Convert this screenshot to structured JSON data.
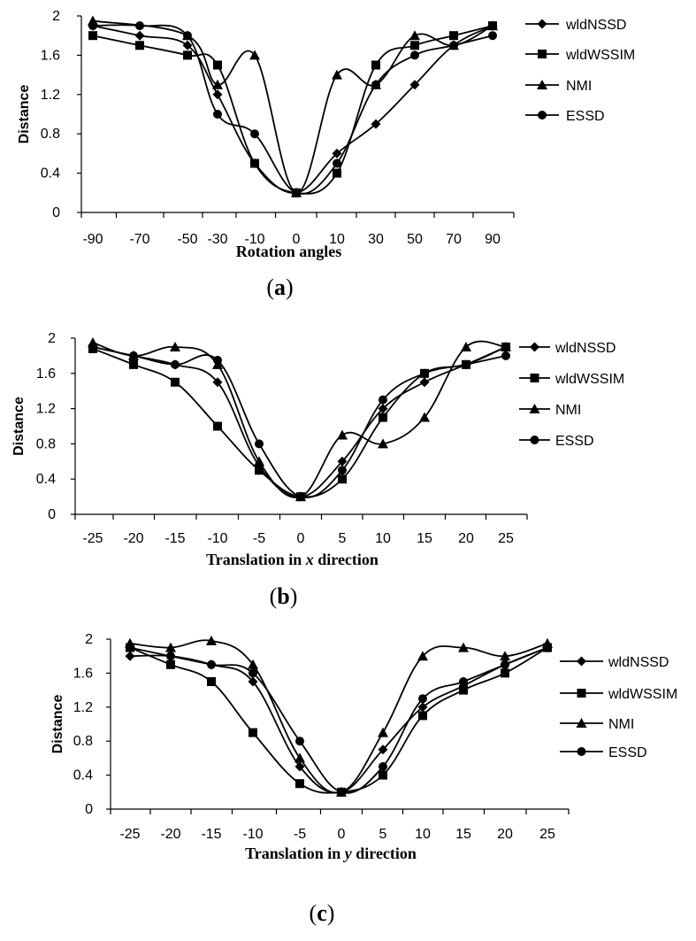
{
  "chart_data": [
    {
      "type": "line",
      "panel_label": "a",
      "ylabel": "Distance",
      "xlabel": "Rotation angles",
      "categories": [
        "-90",
        "-70",
        "-50",
        "-30",
        "-10",
        "0",
        "10",
        "30",
        "50",
        "70",
        "90"
      ],
      "ylim": [
        0,
        2
      ],
      "yticks": [
        "0",
        "0.4",
        "0.8",
        "1.2",
        "1.6",
        "2"
      ],
      "legend_position": "right",
      "series": [
        {
          "name": "wldNSSD",
          "marker": "diamond",
          "points": [
            [
              -90,
              1.9
            ],
            [
              -70,
              1.8
            ],
            [
              -50,
              1.7
            ],
            [
              -30,
              1.2
            ],
            [
              -10,
              0.5
            ],
            [
              0,
              0.2
            ],
            [
              10,
              0.6
            ],
            [
              30,
              0.9
            ],
            [
              50,
              1.3
            ],
            [
              70,
              1.7
            ],
            [
              90,
              1.9
            ]
          ]
        },
        {
          "name": "wldWSSIM",
          "marker": "square",
          "points": [
            [
              -90,
              1.8
            ],
            [
              -70,
              1.7
            ],
            [
              -50,
              1.6
            ],
            [
              -30,
              1.5
            ],
            [
              -10,
              0.5
            ],
            [
              0,
              0.2
            ],
            [
              10,
              0.4
            ],
            [
              30,
              1.5
            ],
            [
              50,
              1.7
            ],
            [
              70,
              1.8
            ],
            [
              90,
              1.9
            ]
          ]
        },
        {
          "name": "NMI",
          "marker": "triangle",
          "points": [
            [
              -90,
              1.95
            ],
            [
              -50,
              1.8
            ],
            [
              -30,
              1.3
            ],
            [
              -10,
              1.6
            ],
            [
              0,
              0.2
            ],
            [
              10,
              1.4
            ],
            [
              30,
              1.3
            ],
            [
              50,
              1.8
            ],
            [
              70,
              1.7
            ],
            [
              90,
              1.9
            ]
          ]
        },
        {
          "name": "ESSD",
          "marker": "circle",
          "points": [
            [
              -90,
              1.9
            ],
            [
              -70,
              1.9
            ],
            [
              -50,
              1.8
            ],
            [
              -30,
              1.0
            ],
            [
              -10,
              0.8
            ],
            [
              0,
              0.2
            ],
            [
              10,
              0.5
            ],
            [
              30,
              1.3
            ],
            [
              50,
              1.6
            ],
            [
              70,
              1.7
            ],
            [
              90,
              1.8
            ]
          ]
        }
      ]
    },
    {
      "type": "line",
      "panel_label": "b",
      "ylabel": "Distance",
      "xlabel_prefix": "Translation in ",
      "xlabel_var": "x",
      "xlabel_suffix": " direction",
      "categories": [
        "-25",
        "-20",
        "-15",
        "-10",
        "-5",
        "0",
        "5",
        "10",
        "15",
        "20",
        "25"
      ],
      "ylim": [
        0,
        2
      ],
      "yticks": [
        "0",
        "0.4",
        "0.8",
        "1.2",
        "1.6",
        "2"
      ],
      "legend_position": "right",
      "series": [
        {
          "name": "wldNSSD",
          "marker": "diamond",
          "points": [
            [
              -25,
              1.9
            ],
            [
              -20,
              1.8
            ],
            [
              -15,
              1.7
            ],
            [
              -10,
              1.5
            ],
            [
              -5,
              0.55
            ],
            [
              0,
              0.2
            ],
            [
              5,
              0.6
            ],
            [
              10,
              1.2
            ],
            [
              15,
              1.5
            ],
            [
              20,
              1.7
            ],
            [
              25,
              1.9
            ]
          ]
        },
        {
          "name": "wldWSSIM",
          "marker": "square",
          "points": [
            [
              -25,
              1.88
            ],
            [
              -20,
              1.7
            ],
            [
              -15,
              1.5
            ],
            [
              -10,
              1.0
            ],
            [
              -5,
              0.5
            ],
            [
              0,
              0.2
            ],
            [
              5,
              0.4
            ],
            [
              10,
              1.1
            ],
            [
              15,
              1.6
            ],
            [
              20,
              1.7
            ],
            [
              25,
              1.9
            ]
          ]
        },
        {
          "name": "NMI",
          "marker": "triangle",
          "points": [
            [
              -25,
              1.95
            ],
            [
              -20,
              1.8
            ],
            [
              -15,
              1.9
            ],
            [
              -10,
              1.7
            ],
            [
              -5,
              0.6
            ],
            [
              0,
              0.2
            ],
            [
              5,
              0.9
            ],
            [
              10,
              0.8
            ],
            [
              15,
              1.1
            ],
            [
              20,
              1.9
            ],
            [
              25,
              1.9
            ]
          ]
        },
        {
          "name": "ESSD",
          "marker": "circle",
          "points": [
            [
              -25,
              1.9
            ],
            [
              -20,
              1.8
            ],
            [
              -15,
              1.7
            ],
            [
              -10,
              1.75
            ],
            [
              -5,
              0.8
            ],
            [
              0,
              0.2
            ],
            [
              5,
              0.5
            ],
            [
              10,
              1.3
            ],
            [
              15,
              1.6
            ],
            [
              20,
              1.7
            ],
            [
              25,
              1.8
            ]
          ]
        }
      ]
    },
    {
      "type": "line",
      "panel_label": "c",
      "ylabel": "Distance",
      "xlabel_prefix": "Translation in ",
      "xlabel_var": "y",
      "xlabel_suffix": " direction",
      "categories": [
        "-25",
        "-20",
        "-15",
        "-10",
        "-5",
        "0",
        "5",
        "10",
        "15",
        "20",
        "25"
      ],
      "ylim": [
        0,
        2
      ],
      "yticks": [
        "0",
        "0.4",
        "0.8",
        "1.2",
        "1.6",
        "2"
      ],
      "legend_position": "right",
      "series": [
        {
          "name": "wldNSSD",
          "marker": "diamond",
          "points": [
            [
              -25,
              1.8
            ],
            [
              -20,
              1.8
            ],
            [
              -15,
              1.7
            ],
            [
              -10,
              1.5
            ],
            [
              -5,
              0.5
            ],
            [
              0,
              0.2
            ],
            [
              5,
              0.7
            ],
            [
              10,
              1.2
            ],
            [
              15,
              1.45
            ],
            [
              20,
              1.7
            ],
            [
              25,
              1.9
            ]
          ]
        },
        {
          "name": "wldWSSIM",
          "marker": "square",
          "points": [
            [
              -25,
              1.9
            ],
            [
              -20,
              1.7
            ],
            [
              -15,
              1.5
            ],
            [
              -10,
              0.9
            ],
            [
              -5,
              0.3
            ],
            [
              0,
              0.2
            ],
            [
              5,
              0.4
            ],
            [
              10,
              1.1
            ],
            [
              15,
              1.4
            ],
            [
              20,
              1.6
            ],
            [
              25,
              1.9
            ]
          ]
        },
        {
          "name": "NMI",
          "marker": "triangle",
          "points": [
            [
              -25,
              1.95
            ],
            [
              -20,
              1.9
            ],
            [
              -15,
              1.98
            ],
            [
              -10,
              1.7
            ],
            [
              -5,
              0.6
            ],
            [
              0,
              0.2
            ],
            [
              5,
              0.9
            ],
            [
              10,
              1.8
            ],
            [
              15,
              1.9
            ],
            [
              20,
              1.8
            ],
            [
              25,
              1.95
            ]
          ]
        },
        {
          "name": "ESSD",
          "marker": "circle",
          "points": [
            [
              -25,
              1.9
            ],
            [
              -20,
              1.8
            ],
            [
              -15,
              1.7
            ],
            [
              -10,
              1.6
            ],
            [
              -5,
              0.8
            ],
            [
              0,
              0.2
            ],
            [
              5,
              0.5
            ],
            [
              10,
              1.3
            ],
            [
              15,
              1.5
            ],
            [
              20,
              1.7
            ],
            [
              25,
              1.9
            ]
          ]
        }
      ]
    }
  ]
}
